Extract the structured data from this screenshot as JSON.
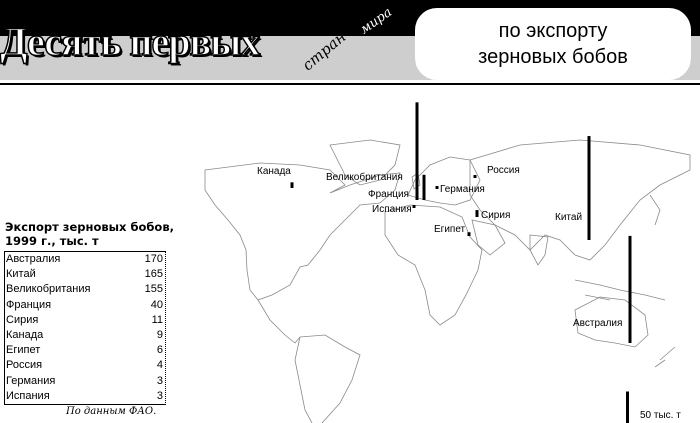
{
  "header": {
    "title": "Десять первых",
    "title_word_2": "стран",
    "title_word_3": "мира",
    "subtitle_line1": "по экспорту",
    "subtitle_line2": "зерновых бобов"
  },
  "table": {
    "title_line1": "Экспорт зерновых бобов,",
    "title_line2": "1999 г., тыс. т",
    "rows": [
      {
        "country": "Австралия",
        "value": "170"
      },
      {
        "country": "Китай",
        "value": "165"
      },
      {
        "country": "Великобритания",
        "value": "155"
      },
      {
        "country": "Франция",
        "value": "40"
      },
      {
        "country": "Сирия",
        "value": "11"
      },
      {
        "country": "Канада",
        "value": "9"
      },
      {
        "country": "Египет",
        "value": "6"
      },
      {
        "country": "Россия",
        "value": "4"
      },
      {
        "country": "Германия",
        "value": "3"
      },
      {
        "country": "Испания",
        "value": "3"
      }
    ],
    "source": "По данным ФАО."
  },
  "map": {
    "labels": {
      "canada": "Канада",
      "uk": "Великобритания",
      "france": "Франция",
      "spain": "Испания",
      "germany": "Германия",
      "russia": "Россия",
      "syria": "Сирия",
      "egypt": "Египет",
      "china": "Китай",
      "australia": "Австралия"
    },
    "scale_value": 50,
    "scale_label": "50 тыс. т"
  },
  "chart_data": {
    "type": "map-bars",
    "unit": "тыс. т",
    "series": [
      {
        "country": "Австралия",
        "value": 170
      },
      {
        "country": "Китай",
        "value": 165
      },
      {
        "country": "Великобритания",
        "value": 155
      },
      {
        "country": "Франция",
        "value": 40
      },
      {
        "country": "Сирия",
        "value": 11
      },
      {
        "country": "Канада",
        "value": 9
      },
      {
        "country": "Египет",
        "value": 6
      },
      {
        "country": "Россия",
        "value": 4
      },
      {
        "country": "Германия",
        "value": 3
      },
      {
        "country": "Испания",
        "value": 3
      }
    ]
  }
}
